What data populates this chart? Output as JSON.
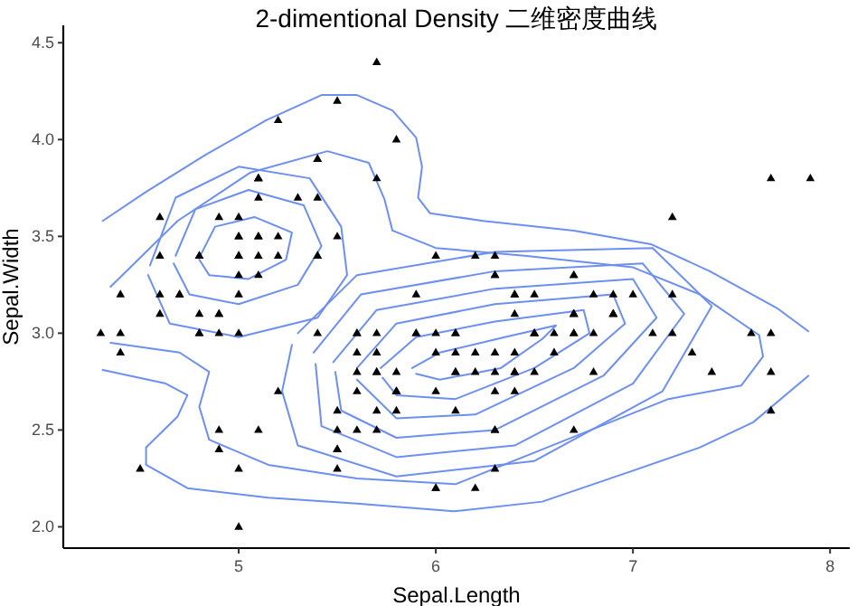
{
  "chart_data": {
    "type": "scatter",
    "title": "2-dimentional Density 二维密度曲线",
    "xlabel": "Sepal.Length",
    "ylabel": "Sepal.Width",
    "xlim": [
      4.11,
      8.1
    ],
    "ylim": [
      1.89,
      4.59
    ],
    "xticks": [
      5,
      6,
      7,
      8
    ],
    "yticks": [
      {
        "value": 2,
        "label": "2.0"
      },
      {
        "value": 2.5,
        "label": "2.5"
      },
      {
        "value": 3,
        "label": "3.0"
      },
      {
        "value": 3.5,
        "label": "3.5"
      },
      {
        "value": 4,
        "label": "4.0"
      },
      {
        "value": 4.5,
        "label": "4.5"
      }
    ],
    "grid": false,
    "series": [
      {
        "type": "scatter",
        "marker": "triangle",
        "color": "#000000",
        "x": [
          5.1,
          4.9,
          4.7,
          4.6,
          5.0,
          5.4,
          4.6,
          5.0,
          4.4,
          4.9,
          5.4,
          4.8,
          4.8,
          4.3,
          5.8,
          5.7,
          5.4,
          5.1,
          5.7,
          5.1,
          5.4,
          5.1,
          4.6,
          5.1,
          4.8,
          5.0,
          5.0,
          5.2,
          5.2,
          4.7,
          4.8,
          5.4,
          5.2,
          5.5,
          4.9,
          5.0,
          5.5,
          4.9,
          4.4,
          5.1,
          5.0,
          4.5,
          4.4,
          5.0,
          5.1,
          4.8,
          5.1,
          4.6,
          5.3,
          5.0,
          7.0,
          6.4,
          6.9,
          5.5,
          6.5,
          5.7,
          6.3,
          4.9,
          6.6,
          5.2,
          5.0,
          5.9,
          6.0,
          6.1,
          5.6,
          6.7,
          5.6,
          5.8,
          6.2,
          5.6,
          5.9,
          6.1,
          6.3,
          6.1,
          6.4,
          6.6,
          6.8,
          6.7,
          6.0,
          5.7,
          5.5,
          5.5,
          5.8,
          6.0,
          5.4,
          6.0,
          6.7,
          6.3,
          5.6,
          5.5,
          5.5,
          6.1,
          5.8,
          5.0,
          5.6,
          5.7,
          5.7,
          6.2,
          5.1,
          5.7,
          6.3,
          5.8,
          7.1,
          6.3,
          6.5,
          7.6,
          4.9,
          7.3,
          6.7,
          7.2,
          6.5,
          6.4,
          6.8,
          5.7,
          5.8,
          6.4,
          6.5,
          7.7,
          7.7,
          6.0,
          6.9,
          5.6,
          7.7,
          6.3,
          6.7,
          7.2,
          6.2,
          6.1,
          6.4,
          7.2,
          7.4,
          7.9,
          6.4,
          6.3,
          6.1,
          7.7,
          6.3,
          6.4,
          6.0,
          6.9,
          6.7,
          6.9,
          5.8,
          6.8,
          6.7,
          6.7,
          6.3,
          6.5,
          6.2,
          5.9
        ],
        "values": [
          3.5,
          3.0,
          3.2,
          3.1,
          3.6,
          3.9,
          3.4,
          3.4,
          2.9,
          3.1,
          3.7,
          3.4,
          3.0,
          3.0,
          4.0,
          4.4,
          3.9,
          3.5,
          3.8,
          3.8,
          3.4,
          3.7,
          3.6,
          3.3,
          3.4,
          3.0,
          3.4,
          3.5,
          3.4,
          3.2,
          3.1,
          3.4,
          4.1,
          4.2,
          3.1,
          3.2,
          3.5,
          3.6,
          3.0,
          3.4,
          3.5,
          2.3,
          3.2,
          3.5,
          3.8,
          3.0,
          3.8,
          3.2,
          3.7,
          3.3,
          3.2,
          3.2,
          3.1,
          2.3,
          2.8,
          2.8,
          3.3,
          2.4,
          2.9,
          2.7,
          2.0,
          3.0,
          2.2,
          2.9,
          2.9,
          3.1,
          3.0,
          2.7,
          2.2,
          2.5,
          3.2,
          2.8,
          2.5,
          2.8,
          2.9,
          3.0,
          2.8,
          3.0,
          2.9,
          2.6,
          2.4,
          2.4,
          2.7,
          2.7,
          3.0,
          3.4,
          3.1,
          2.3,
          3.0,
          2.5,
          2.6,
          3.0,
          2.6,
          2.3,
          2.7,
          3.0,
          2.9,
          2.9,
          2.5,
          2.8,
          3.3,
          2.7,
          3.0,
          2.9,
          3.0,
          3.0,
          2.5,
          2.9,
          2.5,
          3.6,
          3.2,
          2.7,
          3.0,
          2.5,
          2.8,
          3.2,
          3.0,
          3.8,
          2.6,
          2.2,
          3.2,
          2.8,
          2.8,
          2.7,
          3.3,
          3.2,
          2.8,
          3.0,
          2.8,
          3.0,
          2.8,
          3.8,
          2.8,
          2.8,
          2.6,
          3.0,
          3.4,
          3.1,
          3.0,
          3.1,
          3.1,
          3.1,
          2.7,
          3.2,
          3.3,
          3.0,
          2.5,
          3.0,
          3.4,
          3.0
        ]
      },
      {
        "type": "line",
        "color": "#6d8ff0",
        "x": [
          4.31,
          4.53,
          4.83,
          5.14,
          5.42,
          5.6,
          5.78,
          5.9,
          5.93,
          5.91,
          5.97,
          6.24,
          6.7,
          7.09,
          7.39,
          7.73,
          7.89
        ],
        "values": [
          3.58,
          3.73,
          3.92,
          4.1,
          4.23,
          4.23,
          4.15,
          4.01,
          3.86,
          3.7,
          3.62,
          3.58,
          3.53,
          3.46,
          3.32,
          3.13,
          3.01
        ]
      },
      {
        "type": "line",
        "color": "#6d8ff0",
        "x": [
          7.89,
          7.61,
          7.34,
          7.0,
          6.54,
          6.09,
          5.6,
          5.15,
          4.74,
          4.53,
          4.53,
          4.69,
          4.74,
          4.63,
          4.31
        ],
        "values": [
          2.78,
          2.54,
          2.41,
          2.29,
          2.13,
          2.08,
          2.12,
          2.15,
          2.2,
          2.32,
          2.41,
          2.57,
          2.68,
          2.74,
          2.81
        ]
      },
      {
        "type": "line",
        "color": "#6d8ff0",
        "x": [
          4.35,
          4.69,
          5.06,
          5.45,
          5.66,
          5.74,
          5.78,
          6.0,
          6.45,
          7.0,
          7.34,
          7.64,
          7.66,
          7.55,
          7.18,
          6.54,
          6.1,
          5.6,
          5.15,
          4.85,
          4.8,
          4.85,
          4.7,
          4.35
        ],
        "values": [
          3.24,
          3.58,
          3.83,
          3.94,
          3.88,
          3.69,
          3.53,
          3.44,
          3.4,
          3.34,
          3.2,
          2.99,
          2.88,
          2.73,
          2.66,
          2.4,
          2.22,
          2.25,
          2.32,
          2.45,
          2.62,
          2.8,
          2.9,
          2.95
        ]
      },
      {
        "type": "line",
        "color": "#6d8ff0",
        "x": [
          4.81,
          4.88,
          5.08,
          5.27,
          5.24,
          5.05,
          4.85,
          4.8
        ],
        "values": [
          3.41,
          3.55,
          3.6,
          3.52,
          3.38,
          3.28,
          3.3,
          3.38
        ]
      },
      {
        "type": "line",
        "color": "#6d8ff0",
        "x": [
          4.68,
          4.78,
          5.05,
          5.33,
          5.42,
          5.3,
          5.0,
          4.75,
          4.67
        ],
        "values": [
          3.4,
          3.64,
          3.74,
          3.66,
          3.45,
          3.25,
          3.15,
          3.2,
          3.36
        ]
      },
      {
        "type": "line",
        "color": "#6d8ff0",
        "x": [
          4.55,
          4.68,
          5.0,
          5.36,
          5.52,
          5.55,
          5.4,
          5.0,
          4.65,
          4.54
        ],
        "values": [
          3.35,
          3.7,
          3.86,
          3.8,
          3.55,
          3.3,
          3.08,
          2.98,
          3.05,
          3.3
        ]
      },
      {
        "type": "line",
        "color": "#6d8ff0",
        "x": [
          5.88,
          6.02,
          6.35,
          6.61,
          6.54,
          6.33,
          6.02,
          5.9
        ],
        "values": [
          2.82,
          2.9,
          2.98,
          3.04,
          2.97,
          2.82,
          2.76,
          2.79
        ]
      },
      {
        "type": "line",
        "color": "#6d8ff0",
        "x": [
          5.72,
          5.9,
          6.3,
          6.75,
          6.78,
          6.5,
          6.1,
          5.8,
          5.73
        ],
        "values": [
          2.82,
          2.98,
          3.06,
          3.12,
          3.0,
          2.82,
          2.66,
          2.68,
          2.77
        ]
      },
      {
        "type": "line",
        "color": "#6d8ff0",
        "x": [
          5.6,
          5.8,
          6.3,
          6.9,
          6.96,
          6.7,
          6.2,
          5.8,
          5.6
        ],
        "values": [
          2.82,
          3.05,
          3.15,
          3.2,
          3.05,
          2.82,
          2.58,
          2.56,
          2.76
        ]
      },
      {
        "type": "line",
        "color": "#6d8ff0",
        "x": [
          5.48,
          5.7,
          6.3,
          7.0,
          7.12,
          6.85,
          6.3,
          5.8,
          5.52,
          5.49
        ],
        "values": [
          2.85,
          3.12,
          3.23,
          3.28,
          3.08,
          2.78,
          2.5,
          2.46,
          2.6,
          2.8
        ]
      },
      {
        "type": "line",
        "color": "#6d8ff0",
        "x": [
          5.38,
          5.62,
          6.3,
          7.05,
          7.26,
          7.0,
          6.4,
          5.8,
          5.42,
          5.39
        ],
        "values": [
          2.9,
          3.2,
          3.32,
          3.36,
          3.1,
          2.74,
          2.42,
          2.36,
          2.52,
          2.84
        ]
      },
      {
        "type": "line",
        "color": "#6d8ff0",
        "x": [
          5.3,
          5.6,
          6.3,
          7.1,
          7.4,
          7.15,
          6.5,
          5.8,
          5.3,
          5.22,
          5.27
        ],
        "values": [
          3.0,
          3.3,
          3.42,
          3.44,
          3.14,
          2.7,
          2.34,
          2.26,
          2.42,
          2.7,
          2.94
        ]
      }
    ]
  }
}
